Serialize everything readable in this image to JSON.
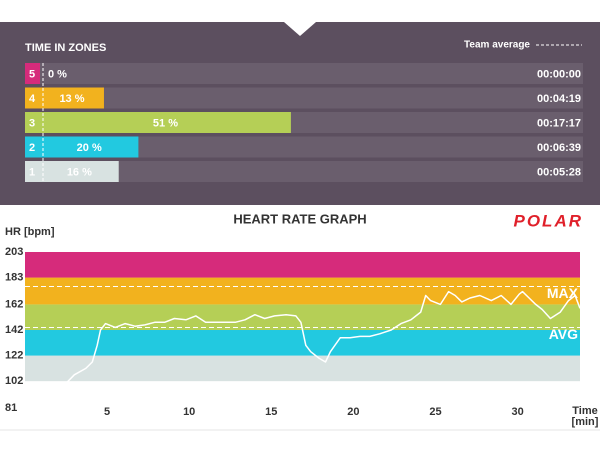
{
  "chart_data": [
    {
      "type": "bar",
      "title": "TIME IN ZONES",
      "annotation": "Team average",
      "categories": [
        "5",
        "4",
        "3",
        "2",
        "1"
      ],
      "values": [
        0,
        13,
        51,
        20,
        16
      ],
      "value_labels": [
        "0 %",
        "13 %",
        "51 %",
        "20 %",
        "16 %"
      ],
      "times": [
        "00:00:00",
        "00:04:19",
        "00:17:17",
        "00:06:39",
        "00:05:28"
      ],
      "colors": [
        "#d62b7b",
        "#f2b21e",
        "#b5cf56",
        "#22c9e0",
        "#d8e2e1"
      ]
    },
    {
      "type": "line",
      "title": "HEART RATE GRAPH",
      "logo": "POLAR",
      "ylabel": "HR [bpm]",
      "xlabel": "Time",
      "xlabel_unit": "[min]",
      "ylim": [
        81,
        203
      ],
      "yticks": [
        81,
        102,
        122,
        142,
        162,
        183,
        203
      ],
      "xlim": [
        0,
        33.8
      ],
      "xticks": [
        5,
        10,
        15,
        20,
        25,
        30
      ],
      "zone_colors": [
        "#d8e2e1",
        "#22c9e0",
        "#b5cf56",
        "#f2b21e",
        "#d62b7b"
      ],
      "reference_lines": [
        {
          "label": "MAX",
          "value": 176
        },
        {
          "label": "AVG",
          "value": 144
        }
      ],
      "color": "#ffffff",
      "x": [
        1.2,
        1.8,
        2.4,
        3.0,
        3.7,
        4.1,
        4.4,
        4.6,
        4.9,
        5.5,
        6.1,
        6.7,
        7.3,
        7.9,
        8.5,
        9.1,
        9.8,
        10.4,
        11.0,
        11.6,
        12.2,
        12.8,
        13.4,
        14.0,
        14.6,
        15.2,
        15.9,
        16.5,
        16.8,
        17.1,
        17.4,
        17.9,
        18.3,
        18.6,
        19.2,
        19.8,
        20.4,
        21.0,
        21.6,
        22.3,
        22.9,
        23.5,
        24.1,
        24.4,
        24.7,
        25.3,
        25.8,
        26.2,
        26.6,
        27.1,
        27.7,
        28.4,
        29.0,
        29.6,
        30.1,
        30.3,
        30.7,
        31.1,
        31.5,
        32.0,
        32.6,
        33.1,
        33.5,
        33.8
      ],
      "values": [
        89,
        94,
        99,
        107,
        112,
        117,
        130,
        142,
        147,
        144,
        147,
        145,
        146,
        148,
        148,
        151,
        150,
        153,
        148,
        148,
        148,
        148,
        150,
        154,
        151,
        153,
        154,
        153,
        148,
        130,
        125,
        120,
        117,
        125,
        136,
        136,
        137,
        137,
        139,
        142,
        147,
        150,
        156,
        169,
        165,
        162,
        172,
        169,
        164,
        167,
        169,
        165,
        169,
        162,
        170,
        172,
        167,
        162,
        158,
        151,
        156,
        165,
        169,
        159
      ]
    }
  ]
}
